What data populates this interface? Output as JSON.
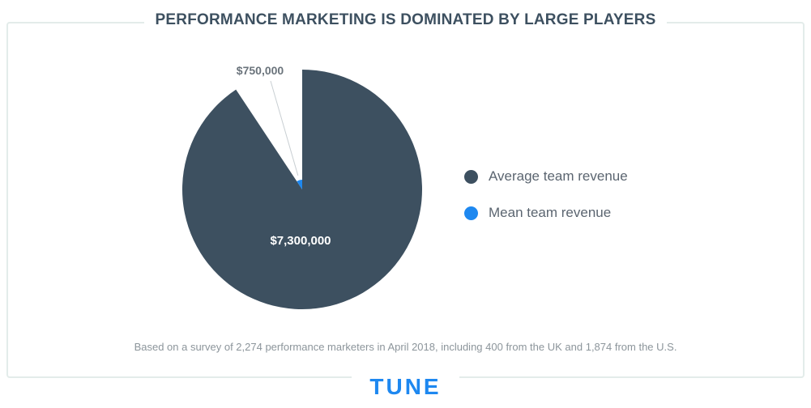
{
  "title": "PERFORMANCE MARKETING IS DOMINATED BY LARGE PLAYERS",
  "footnote": "Based on a survey of 2,274 performance marketers in April 2018, including 400 from the UK and 1,874 from the U.S.",
  "logo": "TUNE",
  "colors": {
    "dark": "#3d5060",
    "blue": "#1e88f0",
    "frame": "#e3ecea"
  },
  "chart_data": {
    "type": "pie",
    "start_angle": "12 o'clock, clockwise",
    "slices": [
      {
        "name": "Average team revenue",
        "value": 7300000,
        "label": "$7,300,000",
        "color": "#3d5060",
        "label_position": "inside"
      },
      {
        "name": "Mean team revenue",
        "value": 750000,
        "label": "$750,000",
        "color": "#1e88f0",
        "label_position": "outside"
      }
    ],
    "legend": {
      "placement": "right",
      "items": [
        {
          "label": "Average team revenue",
          "color": "#3d5060"
        },
        {
          "label": "Mean team revenue",
          "color": "#1e88f0"
        }
      ]
    }
  }
}
